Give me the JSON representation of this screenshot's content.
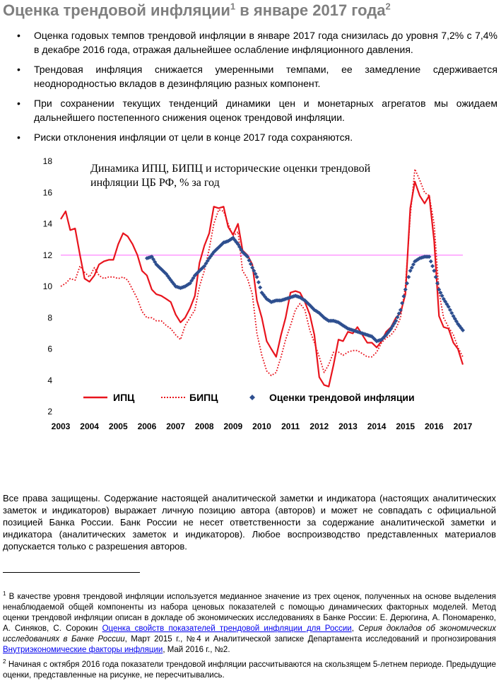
{
  "title": {
    "text": "Оценка трендовой инфляции",
    "sup1": "1",
    "rest": " в январе 2017 года",
    "sup2": "2"
  },
  "bullets": [
    "Оценка годовых темпов трендовой инфляции в январе 2017 года снизилась до уровня 7,2% с 7,4% в декабре 2016 года, отражая дальнейшее ослабление инфляционного давления.",
    "Трендовая инфляция снижается умеренными темпами, ее замедление сдерживается неоднородностью вкладов в дезинфляцию разных компонент.",
    "При сохранении текущих тенденций динамики цен и монетарных агрегатов мы ожидаем дальнейшего постепенного снижения оценок трендовой инфляции.",
    "Риски отклонения инфляции от цели в конце 2017 года сохраняются."
  ],
  "chart_data": {
    "type": "line",
    "title_line1": "Динамика ИПЦ, БИПЦ и исторические оценки трендовой",
    "title_line2": "инфляции ЦБ РФ, % за год",
    "ylim": [
      2,
      18
    ],
    "yticks": [
      "2",
      "4",
      "6",
      "8",
      "10",
      "12",
      "14",
      "16",
      "18"
    ],
    "xticks": [
      "2003",
      "2004",
      "2005",
      "2006",
      "2007",
      "2008",
      "2009",
      "2010",
      "2011",
      "2012",
      "2013",
      "2014",
      "2015",
      "2016",
      "2017"
    ],
    "reference_line": {
      "y": 12,
      "color": "#ff99ff"
    },
    "legend_position": "bottom",
    "series": [
      {
        "name": "ИПЦ",
        "style": "solid",
        "color": "#e8141d",
        "x": [
          2003.0,
          2003.17,
          2003.33,
          2003.5,
          2003.67,
          2003.83,
          2004.0,
          2004.17,
          2004.33,
          2004.5,
          2004.67,
          2004.83,
          2005.0,
          2005.17,
          2005.33,
          2005.5,
          2005.67,
          2005.83,
          2006.0,
          2006.17,
          2006.33,
          2006.5,
          2006.67,
          2006.83,
          2007.0,
          2007.17,
          2007.33,
          2007.5,
          2007.67,
          2007.83,
          2008.0,
          2008.17,
          2008.33,
          2008.5,
          2008.67,
          2008.83,
          2009.0,
          2009.17,
          2009.33,
          2009.5,
          2009.67,
          2009.83,
          2010.0,
          2010.17,
          2010.33,
          2010.5,
          2010.67,
          2010.83,
          2011.0,
          2011.17,
          2011.33,
          2011.5,
          2011.67,
          2011.83,
          2012.0,
          2012.17,
          2012.33,
          2012.5,
          2012.67,
          2012.83,
          2013.0,
          2013.17,
          2013.33,
          2013.5,
          2013.67,
          2013.83,
          2014.0,
          2014.17,
          2014.33,
          2014.5,
          2014.67,
          2014.83,
          2015.0,
          2015.17,
          2015.33,
          2015.5,
          2015.67,
          2015.83,
          2016.0,
          2016.17,
          2016.33,
          2016.5,
          2016.67,
          2016.83,
          2017.0
        ],
        "y": [
          14.3,
          14.8,
          13.6,
          13.7,
          12.0,
          10.5,
          10.3,
          10.7,
          11.4,
          11.6,
          11.7,
          11.7,
          12.7,
          13.4,
          13.2,
          12.7,
          12.0,
          11.0,
          10.7,
          9.8,
          9.5,
          9.4,
          9.2,
          9.0,
          8.2,
          7.7,
          8.0,
          8.6,
          9.4,
          11.5,
          12.6,
          13.4,
          15.1,
          15.0,
          15.1,
          13.8,
          13.3,
          14.0,
          12.3,
          12.0,
          11.4,
          9.1,
          8.0,
          6.5,
          6.0,
          5.5,
          6.9,
          8.0,
          9.6,
          9.7,
          9.6,
          9.0,
          8.2,
          6.9,
          4.2,
          3.7,
          3.6,
          5.0,
          6.6,
          6.5,
          7.1,
          7.0,
          7.4,
          6.9,
          6.4,
          6.4,
          6.1,
          6.5,
          7.1,
          7.4,
          8.0,
          8.3,
          9.5,
          15.0,
          16.7,
          15.8,
          15.3,
          15.8,
          12.9,
          8.1,
          7.4,
          7.3,
          6.4,
          6.0,
          5.0
        ]
      },
      {
        "name": "БИПЦ",
        "style": "dotted",
        "color": "#e8141d",
        "x": [
          2003.0,
          2003.17,
          2003.33,
          2003.5,
          2003.67,
          2003.83,
          2004.0,
          2004.17,
          2004.33,
          2004.5,
          2004.67,
          2004.83,
          2005.0,
          2005.17,
          2005.33,
          2005.5,
          2005.67,
          2005.83,
          2006.0,
          2006.17,
          2006.33,
          2006.5,
          2006.67,
          2006.83,
          2007.0,
          2007.17,
          2007.33,
          2007.5,
          2007.67,
          2007.83,
          2008.0,
          2008.17,
          2008.33,
          2008.5,
          2008.67,
          2008.83,
          2009.0,
          2009.17,
          2009.33,
          2009.5,
          2009.67,
          2009.83,
          2010.0,
          2010.17,
          2010.33,
          2010.5,
          2010.67,
          2010.83,
          2011.0,
          2011.17,
          2011.33,
          2011.5,
          2011.67,
          2011.83,
          2012.0,
          2012.17,
          2012.33,
          2012.5,
          2012.67,
          2012.83,
          2013.0,
          2013.17,
          2013.33,
          2013.5,
          2013.67,
          2013.83,
          2014.0,
          2014.17,
          2014.33,
          2014.5,
          2014.67,
          2014.83,
          2015.0,
          2015.17,
          2015.33,
          2015.5,
          2015.67,
          2015.83,
          2016.0,
          2016.17,
          2016.33,
          2016.5,
          2016.67,
          2016.83,
          2017.0
        ],
        "y": [
          10.0,
          10.2,
          10.5,
          10.4,
          11.3,
          10.9,
          10.6,
          11.2,
          10.7,
          10.5,
          10.6,
          10.6,
          10.5,
          10.6,
          10.4,
          9.8,
          9.2,
          8.4,
          8.0,
          8.0,
          7.8,
          7.8,
          7.5,
          7.3,
          6.9,
          6.6,
          7.5,
          8.0,
          8.5,
          10.0,
          11.0,
          12.4,
          14.0,
          14.9,
          14.8,
          14.0,
          13.2,
          13.5,
          11.0,
          10.5,
          9.5,
          7.0,
          5.6,
          4.6,
          4.3,
          4.5,
          5.5,
          6.6,
          7.5,
          8.5,
          8.9,
          8.5,
          7.2,
          6.4,
          5.5,
          4.5,
          5.0,
          5.8,
          5.8,
          5.6,
          5.8,
          5.9,
          5.9,
          5.7,
          5.5,
          5.5,
          5.8,
          6.4,
          6.7,
          6.9,
          7.3,
          8.0,
          10.0,
          14.5,
          17.5,
          16.8,
          16.0,
          15.8,
          14.0,
          9.6,
          8.0,
          7.4,
          6.9,
          6.1,
          5.5
        ]
      },
      {
        "name": "Оценки трендовой инфляции",
        "style": "diamond",
        "color": "#2e4f8f",
        "x": [
          2006.0,
          2006.17,
          2006.33,
          2006.5,
          2006.67,
          2006.83,
          2007.0,
          2007.17,
          2007.33,
          2007.5,
          2007.67,
          2007.83,
          2008.0,
          2008.17,
          2008.33,
          2008.5,
          2008.67,
          2008.83,
          2009.0,
          2009.17,
          2009.33,
          2009.5,
          2009.67,
          2009.83,
          2010.0,
          2010.17,
          2010.33,
          2010.5,
          2010.67,
          2010.83,
          2011.0,
          2011.17,
          2011.33,
          2011.5,
          2011.67,
          2011.83,
          2012.0,
          2012.17,
          2012.33,
          2012.5,
          2012.67,
          2012.83,
          2013.0,
          2013.17,
          2013.33,
          2013.5,
          2013.67,
          2013.83,
          2014.0,
          2014.17,
          2014.33,
          2014.5,
          2014.67,
          2014.83,
          2015.0,
          2015.17,
          2015.33,
          2015.5,
          2015.67,
          2015.83,
          2016.0,
          2016.17,
          2016.33,
          2016.5,
          2016.67,
          2016.83,
          2017.0
        ],
        "y": [
          11.8,
          11.9,
          11.4,
          11.1,
          10.8,
          10.4,
          10.0,
          9.9,
          10.0,
          10.2,
          10.7,
          11.0,
          11.3,
          11.8,
          12.2,
          12.5,
          12.8,
          12.9,
          13.1,
          12.7,
          12.2,
          11.9,
          11.2,
          10.6,
          9.6,
          9.2,
          9.0,
          9.1,
          9.1,
          9.2,
          9.3,
          9.4,
          9.3,
          9.1,
          8.8,
          8.5,
          8.3,
          8.0,
          7.8,
          7.8,
          7.7,
          7.5,
          7.3,
          7.2,
          7.1,
          7.0,
          6.9,
          6.8,
          6.5,
          6.6,
          6.9,
          7.3,
          7.8,
          8.5,
          9.8,
          11.0,
          11.6,
          11.8,
          11.9,
          11.9,
          11.0,
          9.8,
          9.2,
          8.7,
          8.1,
          7.6,
          7.2
        ]
      }
    ]
  },
  "disclaimer": "Все права защищены. Содержание настоящей аналитической заметки и индикатора (настоящих аналитических заметок и индикаторов) выражает личную позицию автора (авторов) и может не совпадать с официальной позицией Банка России. Банк России не несет ответственности за содержание аналитической заметки и индикатора (аналитических заметок и индикаторов). Любое воспроизводство представленных материалов допускается только с разрешения авторов.",
  "footnote1": {
    "num": "1",
    "t1": "В качестве уровня трендовой инфляции используется медианное значение из трех оценок, полученных на основе выделения ненаблюдаемой общей компоненты из набора ценовых показателей с помощью динамических факторных моделей. Метод оценки трендовой инфляции описан в докладе об экономических исследованиях в Банке России: Е. Дерюгина, А. Пономаренко, А. Синяков, С. Сорокин ",
    "link1": "Оценка свойств показателей трендовой инфляции для России",
    "t2": ", ",
    "ital": "Серия докладов об экономических исследованиях в Банке России",
    "t3": ", Март 2015 г., №4 и Аналитической записке Департамента исследований и прогнозирования ",
    "link2": "Внутриэкономические факторы инфляции",
    "t4": ", Май 2016 г., №2."
  },
  "footnote2": {
    "num": "2",
    "text": "Начиная с октября 2016 года показатели трендовой инфляции рассчитываются на скользящем 5-летнем периоде. Предыдущие оценки, представленные на рисунке, не пересчитывались."
  }
}
